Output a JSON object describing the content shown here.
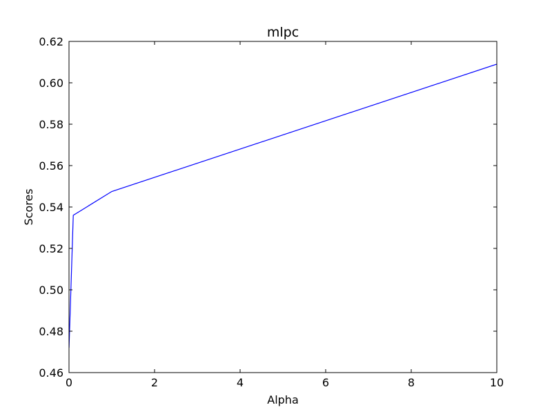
{
  "chart_data": {
    "type": "line",
    "title": "mlpc",
    "xlabel": "Alpha",
    "ylabel": "Scores",
    "xlim": [
      0,
      10
    ],
    "ylim": [
      0.46,
      0.62
    ],
    "grid": false,
    "xticks": [
      "0",
      "2",
      "4",
      "6",
      "8",
      "10"
    ],
    "yticks": [
      "0.46",
      "0.48",
      "0.50",
      "0.52",
      "0.54",
      "0.56",
      "0.58",
      "0.60",
      "0.62"
    ],
    "series": [
      {
        "color": "#0000ff",
        "x": [
          0.001,
          0.01,
          0.1,
          1,
          10
        ],
        "y": [
          0.472,
          0.478,
          0.536,
          0.5475,
          0.609
        ]
      }
    ]
  }
}
